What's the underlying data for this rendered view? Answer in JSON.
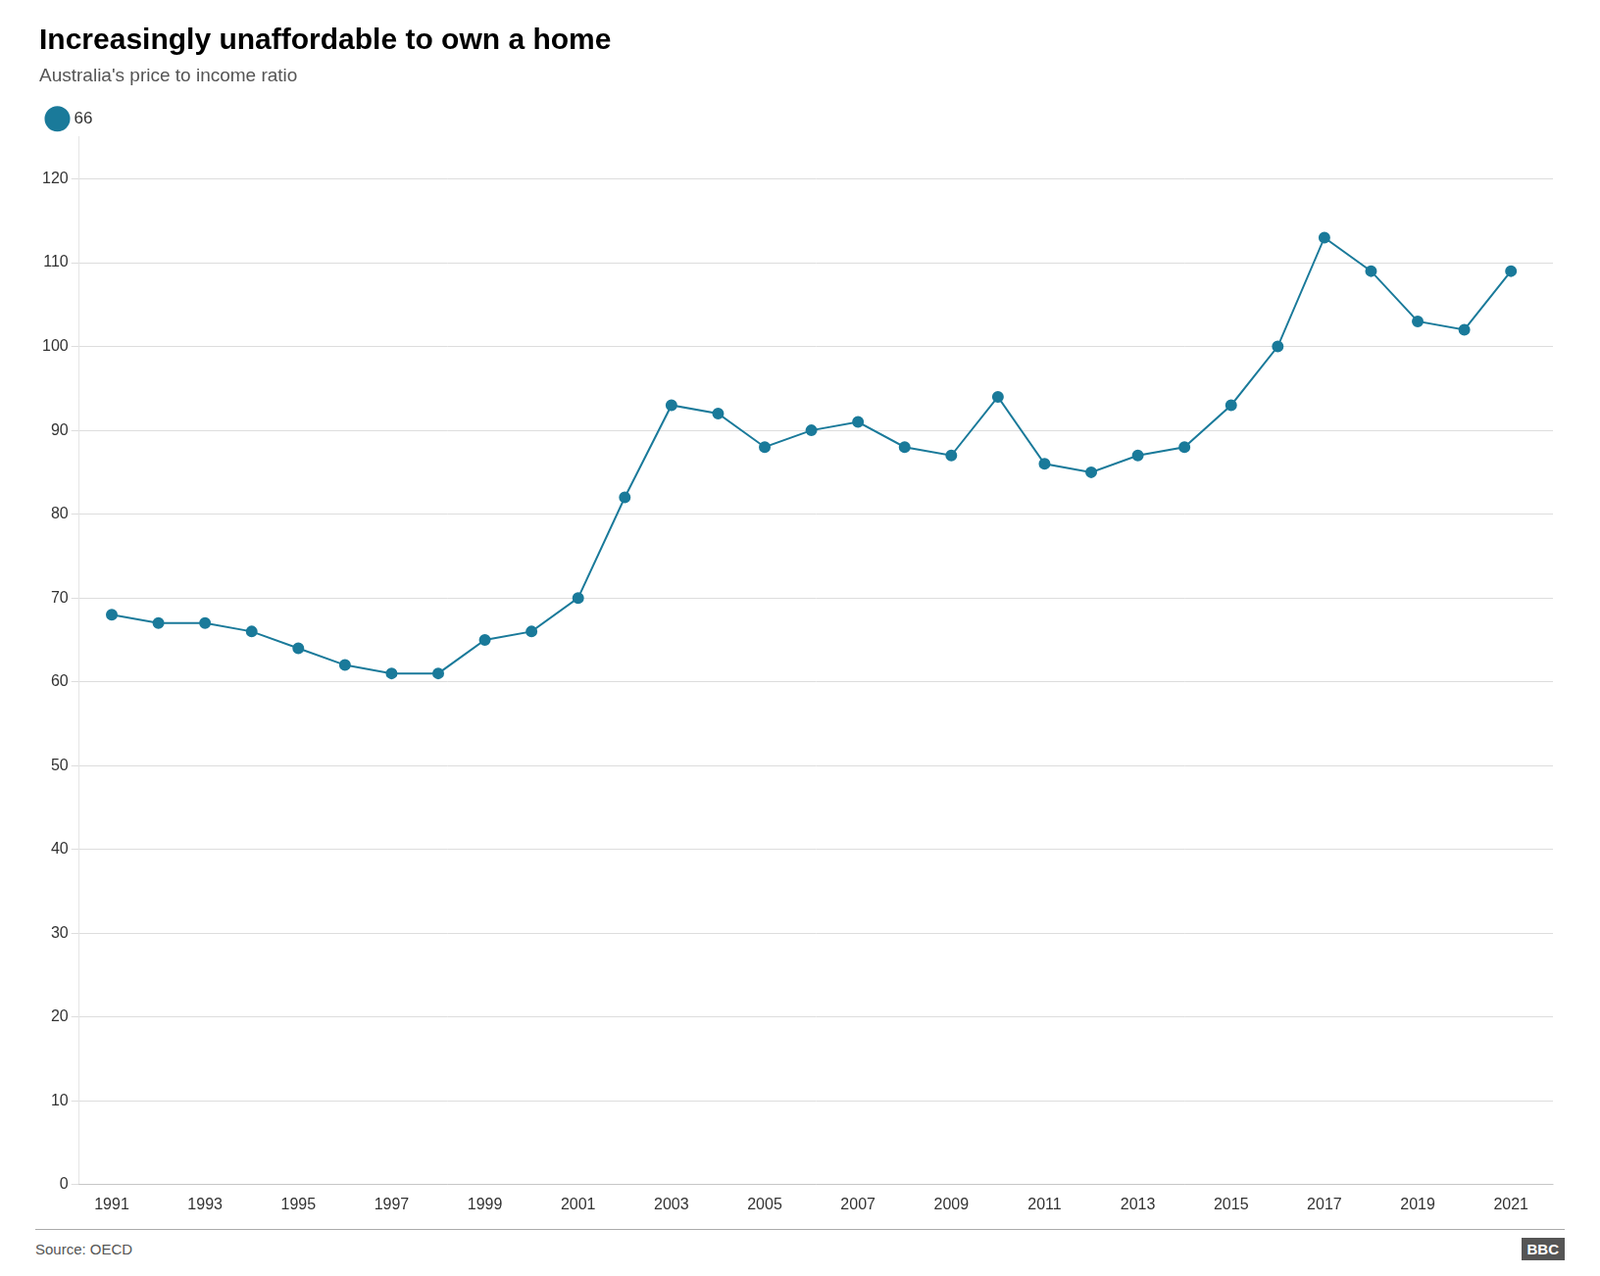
{
  "chart_data": {
    "type": "line",
    "title": "Increasingly unaffordable to own a home",
    "subtitle": "Australia's price to income ratio",
    "annotations": [
      "Source: OECD",
      "BBC"
    ],
    "x": [
      1991,
      1992,
      1993,
      1994,
      1995,
      1996,
      1997,
      1998,
      1999,
      2000,
      2001,
      2002,
      2003,
      2004,
      2005,
      2006,
      2007,
      2008,
      2009,
      2010,
      2011,
      2012,
      2013,
      2014,
      2015,
      2016,
      2017,
      2018,
      2019,
      2020,
      2021
    ],
    "series": [
      {
        "name": "66",
        "color": "#1a7a9a",
        "marker": "circle",
        "values": [
          68,
          67,
          67,
          66,
          64,
          62,
          61,
          61,
          65,
          66,
          70,
          82,
          93,
          92,
          88,
          90,
          91,
          88,
          87,
          94,
          86,
          85,
          87,
          88,
          93,
          100,
          113,
          109,
          103,
          102,
          109
        ]
      }
    ],
    "xlim": [
      1990.3,
      2021.9
    ],
    "xticks": [
      1991,
      1993,
      1995,
      1997,
      1999,
      2001,
      2003,
      2005,
      2007,
      2009,
      2011,
      2013,
      2015,
      2017,
      2019,
      2021
    ],
    "ylim": [
      0,
      125
    ],
    "yticks": [
      0,
      10,
      20,
      30,
      40,
      50,
      60,
      70,
      80,
      90,
      100,
      110,
      120
    ],
    "grid": true,
    "legend": "upper left"
  }
}
